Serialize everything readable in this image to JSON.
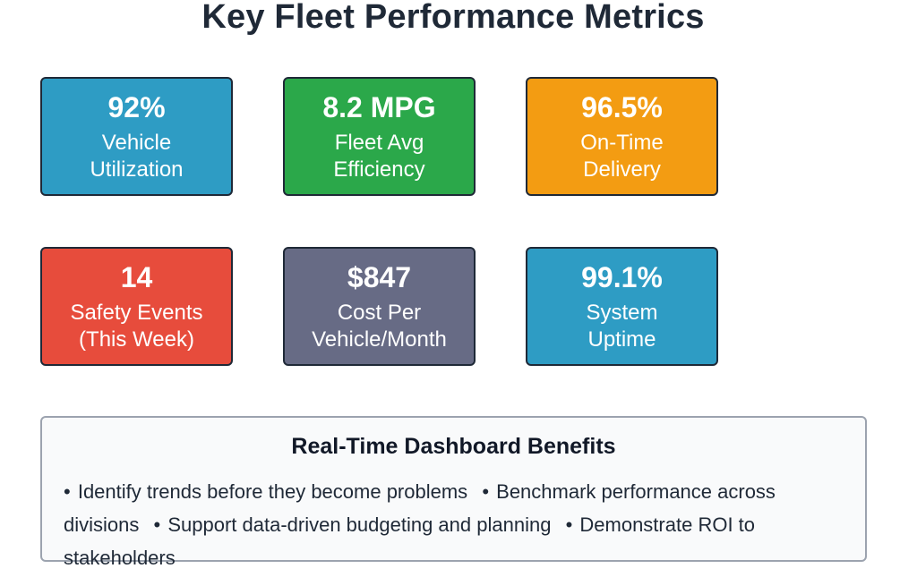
{
  "title": "Key Fleet Performance Metrics",
  "metrics": [
    {
      "value": "92%",
      "label": "Vehicle\nUtilization",
      "color": "#2e9cc4"
    },
    {
      "value": "8.2 MPG",
      "label": "Fleet Avg\nEfficiency",
      "color": "#2ba84a"
    },
    {
      "value": "96.5%",
      "label": "On-Time\nDelivery",
      "color": "#f39c12"
    },
    {
      "value": "14",
      "label": "Safety Events\n(This Week)",
      "color": "#e74c3c"
    },
    {
      "value": "$847",
      "label": "Cost Per\nVehicle/Month",
      "color": "#676b85"
    },
    {
      "value": "99.1%",
      "label": "System\nUptime",
      "color": "#2e9cc4"
    }
  ],
  "benefits": {
    "title": "Real-Time Dashboard Benefits",
    "bullet": "•",
    "items": [
      "Identify trends before they become problems",
      "Benchmark performance across divisions",
      "Support data-driven budgeting and planning",
      "Demonstrate ROI to stakeholders"
    ]
  }
}
